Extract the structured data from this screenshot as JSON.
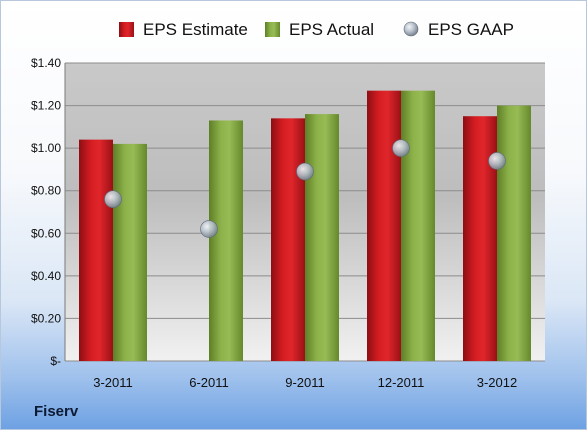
{
  "chart_data": {
    "type": "bar",
    "categories": [
      "3-2011",
      "6-2011",
      "9-2011",
      "12-2011",
      "3-2012"
    ],
    "series": [
      {
        "name": "EPS Estimate",
        "kind": "bar",
        "color": "#c0141b",
        "values": [
          1.04,
          null,
          1.14,
          1.27,
          1.15
        ]
      },
      {
        "name": "EPS Actual",
        "kind": "bar",
        "color": "#7ea13c",
        "values": [
          1.02,
          1.13,
          1.16,
          1.27,
          1.2
        ]
      },
      {
        "name": "EPS GAAP",
        "kind": "scatter",
        "color": "#a9b4c2",
        "values": [
          0.76,
          0.62,
          0.89,
          1.0,
          0.94
        ]
      }
    ],
    "ylim": [
      0,
      1.4
    ],
    "yticks": [
      0,
      0.2,
      0.4,
      0.6,
      0.8,
      1.0,
      1.2,
      1.4
    ],
    "ytick_labels": [
      "$-",
      "$0.20",
      "$0.40",
      "$0.60",
      "$0.80",
      "$1.00",
      "$1.20",
      "$1.40"
    ],
    "legend_position": "top",
    "grid": true
  },
  "company": "Fiserv"
}
